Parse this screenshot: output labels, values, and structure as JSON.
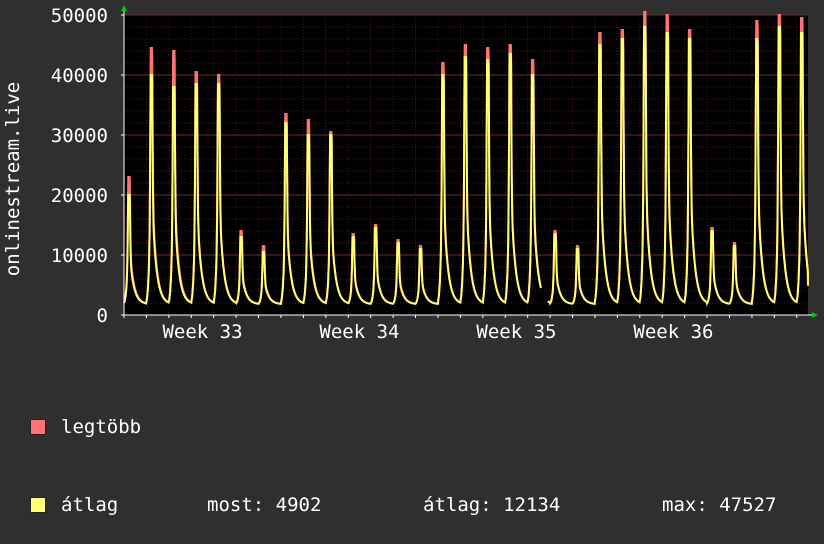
{
  "colors": {
    "background": "#2f2f2f",
    "plot_background": "#000000",
    "grid_minor": "#4a1a1a",
    "grid_major": "#5a2a2a",
    "max_series": "#ff7373",
    "avg_series": "#ffff73",
    "axis": "#ffffff",
    "arrow": "#00cc00"
  },
  "chart_data": {
    "type": "area",
    "title": "",
    "xlabel": "",
    "ylabel": "onlinestream.live",
    "ylim": [
      0,
      50000
    ],
    "yticks": [
      0,
      10000,
      20000,
      30000,
      40000,
      50000
    ],
    "ytick_labels": [
      "0",
      "10000",
      "20000",
      "30000",
      "40000",
      "50000"
    ],
    "xticks": [
      {
        "label": "Week 33",
        "day": 3.5
      },
      {
        "label": "Week 34",
        "day": 10.5
      },
      {
        "label": "Week 35",
        "day": 17.5
      },
      {
        "label": "Week 36",
        "day": 24.5
      }
    ],
    "x_days": 30.5,
    "grid": true,
    "daily_peaks": [
      {
        "day": 0,
        "max": 23000,
        "avg": 20000
      },
      {
        "day": 1,
        "max": 44500,
        "avg": 40000
      },
      {
        "day": 2,
        "max": 44000,
        "avg": 38000
      },
      {
        "day": 3,
        "max": 40500,
        "avg": 38500
      },
      {
        "day": 4,
        "max": 40000,
        "avg": 38500
      },
      {
        "day": 5,
        "max": 14000,
        "avg": 13000
      },
      {
        "day": 6,
        "max": 11500,
        "avg": 10500
      },
      {
        "day": 7,
        "max": 33500,
        "avg": 32000
      },
      {
        "day": 8,
        "max": 32500,
        "avg": 30000
      },
      {
        "day": 9,
        "max": 30500,
        "avg": 30000
      },
      {
        "day": 10,
        "max": 13500,
        "avg": 13000
      },
      {
        "day": 11,
        "max": 15000,
        "avg": 14500
      },
      {
        "day": 12,
        "max": 12500,
        "avg": 12000
      },
      {
        "day": 13,
        "max": 11500,
        "avg": 11000
      },
      {
        "day": 14,
        "max": 42000,
        "avg": 40000
      },
      {
        "day": 15,
        "max": 45000,
        "avg": 43000
      },
      {
        "day": 16,
        "max": 44500,
        "avg": 42500
      },
      {
        "day": 17,
        "max": 45000,
        "avg": 43500
      },
      {
        "day": 18,
        "max": 42500,
        "avg": 40000
      },
      {
        "day": 19,
        "max": 14000,
        "avg": 13500
      },
      {
        "day": 20,
        "max": 11500,
        "avg": 11000
      },
      {
        "day": 21,
        "max": 47000,
        "avg": 45000
      },
      {
        "day": 22,
        "max": 47500,
        "avg": 46000
      },
      {
        "day": 23,
        "max": 50500,
        "avg": 48000
      },
      {
        "day": 24,
        "max": 50000,
        "avg": 47000
      },
      {
        "day": 25,
        "max": 47500,
        "avg": 46000
      },
      {
        "day": 26,
        "max": 14500,
        "avg": 14000
      },
      {
        "day": 27,
        "max": 12000,
        "avg": 11500
      },
      {
        "day": 28,
        "max": 49000,
        "avg": 46000
      },
      {
        "day": 29,
        "max": 50000,
        "avg": 48000
      },
      {
        "day": 30,
        "max": 49500,
        "avg": 47000
      }
    ],
    "gap": {
      "from_day": 18.6,
      "to_day": 18.9
    },
    "series": [
      {
        "name": "legtöbb",
        "color": "#ff7373"
      },
      {
        "name": "átlag",
        "color": "#ffff73"
      }
    ]
  },
  "legend": {
    "max_label": "legtöbb",
    "avg_label": "átlag",
    "now_text": "most: 4902",
    "avg_text": "átlag: 12134",
    "max_text": "max: 47527"
  }
}
